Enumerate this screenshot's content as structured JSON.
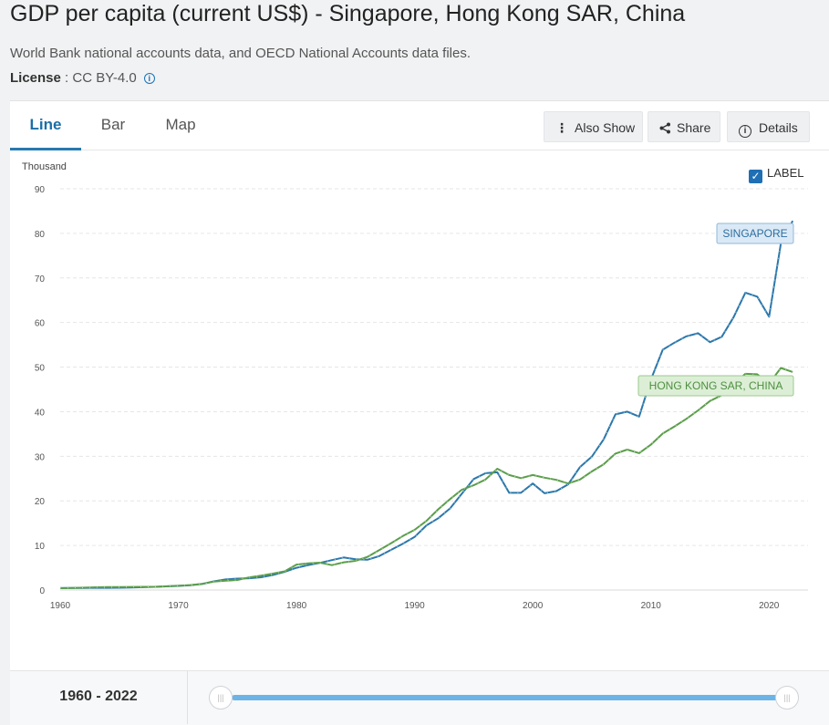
{
  "header": {
    "title": "GDP per capita (current US$) - Singapore, Hong Kong SAR, China",
    "source": "World Bank national accounts data, and OECD National Accounts data files.",
    "license_label": "License",
    "license_sep": " : ",
    "license_value": "CC BY-4.0"
  },
  "tabs": [
    {
      "label": "Line",
      "active": true
    },
    {
      "label": "Bar",
      "active": false
    },
    {
      "label": "Map",
      "active": false
    }
  ],
  "toolbar": {
    "also_show": "Also Show",
    "share": "Share",
    "details": "Details"
  },
  "label_toggle": {
    "label": "LABEL",
    "checked": true
  },
  "range": {
    "label": "1960 - 2022",
    "start_year": 1960,
    "end_year": 2022
  },
  "colors": {
    "singapore": "#2b77ab",
    "hong_kong": "#5a9e4a",
    "accent": "#2779b0"
  },
  "chart_data": {
    "type": "line",
    "ylabel": "Thousand",
    "ylim": [
      0,
      90
    ],
    "yticks": [
      0,
      10,
      20,
      30,
      40,
      50,
      60,
      70,
      80,
      90
    ],
    "xticks": [
      1960,
      1970,
      1980,
      1990,
      2000,
      2010,
      2020
    ],
    "grid": true,
    "series": [
      {
        "name": "SINGAPORE",
        "color": "#2b77ab",
        "x": [
          1960,
          1961,
          1962,
          1963,
          1964,
          1965,
          1966,
          1967,
          1968,
          1969,
          1970,
          1971,
          1972,
          1973,
          1974,
          1975,
          1976,
          1977,
          1978,
          1979,
          1980,
          1981,
          1982,
          1983,
          1984,
          1985,
          1986,
          1987,
          1988,
          1989,
          1990,
          1991,
          1992,
          1993,
          1994,
          1995,
          1996,
          1997,
          1998,
          1999,
          2000,
          2001,
          2002,
          2003,
          2004,
          2005,
          2006,
          2007,
          2008,
          2009,
          2010,
          2011,
          2012,
          2013,
          2014,
          2015,
          2016,
          2017,
          2018,
          2019,
          2020,
          2021,
          2022
        ],
        "values": [
          0.43,
          0.45,
          0.47,
          0.51,
          0.49,
          0.52,
          0.57,
          0.63,
          0.71,
          0.81,
          0.93,
          1.06,
          1.36,
          1.94,
          2.37,
          2.55,
          2.64,
          2.87,
          3.37,
          4.1,
          5.0,
          5.6,
          6.1,
          6.7,
          7.3,
          6.9,
          6.8,
          7.6,
          9.0,
          10.4,
          11.9,
          14.5,
          16.1,
          18.3,
          21.6,
          24.9,
          26.2,
          26.4,
          21.8,
          21.8,
          23.9,
          21.7,
          22.2,
          23.7,
          27.6,
          29.9,
          33.8,
          39.4,
          40.0,
          38.9,
          47.2,
          53.9,
          55.5,
          56.9,
          57.6,
          55.6,
          56.8,
          61.2,
          66.7,
          65.8,
          61.3,
          77.7,
          82.8
        ]
      },
      {
        "name": "HONG KONG SAR, CHINA",
        "color": "#5a9e4a",
        "x": [
          1960,
          1961,
          1962,
          1963,
          1964,
          1965,
          1966,
          1967,
          1968,
          1969,
          1970,
          1971,
          1972,
          1973,
          1974,
          1975,
          1976,
          1977,
          1978,
          1979,
          1980,
          1981,
          1982,
          1983,
          1984,
          1985,
          1986,
          1987,
          1988,
          1989,
          1990,
          1991,
          1992,
          1993,
          1994,
          1995,
          1996,
          1997,
          1998,
          1999,
          2000,
          2001,
          2002,
          2003,
          2004,
          2005,
          2006,
          2007,
          2008,
          2009,
          2010,
          2011,
          2012,
          2013,
          2014,
          2015,
          2016,
          2017,
          2018,
          2019,
          2020,
          2021,
          2022
        ],
        "values": [
          0.43,
          0.48,
          0.53,
          0.62,
          0.66,
          0.68,
          0.69,
          0.72,
          0.71,
          0.83,
          0.96,
          1.1,
          1.38,
          1.88,
          2.09,
          2.25,
          2.84,
          3.24,
          3.68,
          4.2,
          5.7,
          5.99,
          6.13,
          5.59,
          6.21,
          6.54,
          7.43,
          8.96,
          10.5,
          12.1,
          13.5,
          15.5,
          18.1,
          20.4,
          22.5,
          23.5,
          24.8,
          27.2,
          25.8,
          25.1,
          25.8,
          25.2,
          24.7,
          23.9,
          24.8,
          26.6,
          28.2,
          30.6,
          31.5,
          30.7,
          32.6,
          35.1,
          36.7,
          38.4,
          40.3,
          42.4,
          43.7,
          46.2,
          48.5,
          48.4,
          46.3,
          49.8,
          48.9
        ]
      }
    ]
  }
}
